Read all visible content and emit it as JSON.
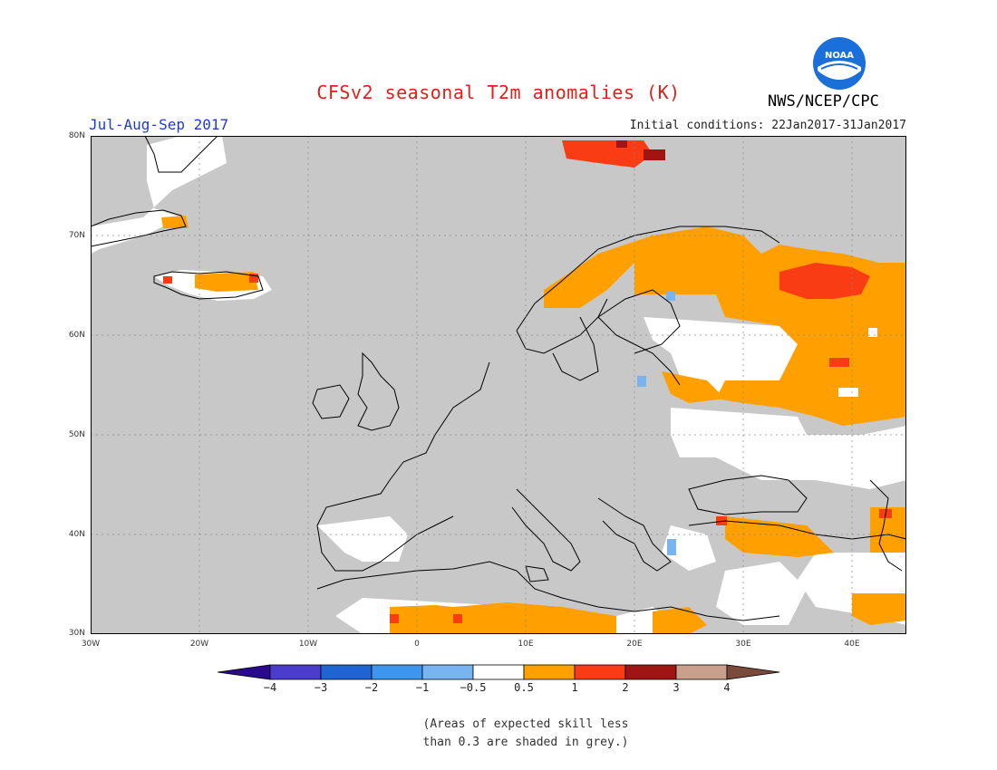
{
  "title": "CFSv2 seasonal T2m anomalies (K)",
  "period": "Jul-Aug-Sep 2017",
  "initial_conditions": "Initial conditions: 22Jan2017-31Jan2017",
  "agency": "NWS/NCEP/CPC",
  "logo_text": "NOAA",
  "note_line1": "(Areas of expected skill less",
  "note_line2": "than 0.3 are shaded in grey.)",
  "map": {
    "lon_range": [
      -30,
      45
    ],
    "lat_range": [
      30,
      80
    ],
    "lat_ticks": [
      "80N",
      "70N",
      "60N",
      "50N",
      "40N",
      "30N"
    ],
    "lon_ticks": [
      "30W",
      "20W",
      "10W",
      "0",
      "10E",
      "20E",
      "30E",
      "40E"
    ],
    "colors": {
      "low_skill_grey": "#c8c8c8",
      "near_normal": "#ffffff",
      "warm_0_5_1": "#ffa000",
      "warm_1_2": "#fa3c14",
      "warm_2_3": "#a01414",
      "cold_0_5_1": "#78b4f0",
      "land_outline": "#000000"
    }
  },
  "colorbar": {
    "labels": [
      "−4",
      "−3",
      "−2",
      "−1",
      "−0.5",
      "0.5",
      "1",
      "2",
      "3",
      "4"
    ],
    "colors": [
      "#2a0a8c",
      "#4a3ccc",
      "#1e64d2",
      "#3c96f0",
      "#78b4f0",
      "#ffffff",
      "#ffa000",
      "#fa3c14",
      "#a01414",
      "#c8a08c",
      "#7a4a3a"
    ]
  }
}
